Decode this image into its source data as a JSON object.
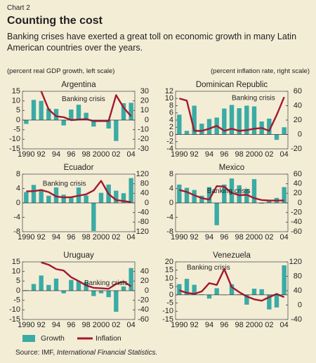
{
  "chart_label": "Chart 2",
  "title": "Counting the cost",
  "subtitle": "Banking crises have exerted a great toll on economic growth in many Latin American countries over the years.",
  "left_axis_label": "(percent real GDP growth, left scale)",
  "right_axis_label": "(percent inflation rate, right scale)",
  "source": "Source: IMF, ",
  "source_title": "International Financial Statistics.",
  "chart_data": [
    {
      "type": "bar",
      "title": "Argentina",
      "annotation": "Banking crisis",
      "categories": [
        "1990",
        null,
        "92",
        null,
        "94",
        null,
        "96",
        null,
        "98",
        null,
        "2000",
        null,
        "02",
        null,
        "04"
      ],
      "series": [
        {
          "name": "Growth",
          "color": "#3aaba5",
          "values": [
            -2,
            10.5,
            10,
            6,
            5.8,
            -2.8,
            5.5,
            8,
            3.8,
            -3.4,
            -0.8,
            -4.4,
            -10.9,
            8.8,
            9
          ]
        },
        {
          "name": "Inflation",
          "color": "#a3192f",
          "type": "line",
          "axis": "y2",
          "values": [
            null,
            null,
            30,
            11,
            4,
            3,
            0,
            0.5,
            1,
            -1,
            -1,
            -1,
            26,
            13,
            4
          ]
        }
      ],
      "ylim": [
        -15,
        15
      ],
      "yticks": [
        -15,
        -10,
        -5,
        0,
        5,
        10,
        15
      ],
      "y2lim": [
        -30,
        30
      ],
      "y2ticks": [
        -30,
        -20,
        -10,
        0,
        10,
        20,
        30
      ]
    },
    {
      "type": "bar",
      "title": "Dominican Republic",
      "annotation": "Banking crisis",
      "categories": [
        "1990",
        null,
        "92",
        null,
        "94",
        null,
        "96",
        null,
        "98",
        null,
        "2000",
        null,
        "02",
        null,
        "04"
      ],
      "series": [
        {
          "name": "Growth",
          "color": "#3aaba5",
          "values": [
            5.5,
            1,
            8,
            3,
            4.3,
            4.7,
            7.2,
            8.2,
            7.3,
            8,
            7.8,
            3.6,
            4.4,
            -1.5,
            2
          ]
        },
        {
          "name": "Inflation",
          "color": "#a3192f",
          "type": "line",
          "axis": "y2",
          "values": [
            50,
            47,
            5,
            5,
            8,
            12,
            5,
            8,
            5,
            6,
            8,
            9,
            5,
            27,
            52
          ]
        }
      ],
      "ylim": [
        -4,
        12
      ],
      "yticks": [
        -4,
        -2,
        0,
        2,
        4,
        6,
        8,
        10,
        12
      ],
      "y2lim": [
        -20,
        60
      ],
      "y2ticks": [
        -20,
        0,
        20,
        40,
        60
      ]
    },
    {
      "type": "bar",
      "title": "Ecuador",
      "annotation": "Banking crisis",
      "categories": [
        "1990",
        null,
        "92",
        null,
        "94",
        null,
        "96",
        null,
        "98",
        null,
        "2000",
        null,
        "02",
        null,
        "04"
      ],
      "series": [
        {
          "name": "Growth",
          "color": "#3aaba5",
          "values": [
            3,
            5,
            3.6,
            2,
            4.3,
            2.3,
            1.7,
            4.3,
            2.1,
            -7.8,
            2.8,
            5.1,
            3.4,
            2.7,
            6.9
          ]
        },
        {
          "name": "Inflation",
          "color": "#a3192f",
          "type": "line",
          "axis": "y2",
          "values": [
            48,
            49,
            54,
            45,
            27,
            23,
            24,
            30,
            36,
            52,
            92,
            37,
            12,
            8,
            3
          ]
        }
      ],
      "ylim": [
        -8,
        8
      ],
      "yticks": [
        -8,
        -4,
        0,
        4,
        8
      ],
      "y2lim": [
        -120,
        120
      ],
      "y2ticks": [
        -120,
        -80,
        -40,
        0,
        40,
        80,
        120
      ]
    },
    {
      "type": "bar",
      "title": "Mexico",
      "annotation": "Banking crisis",
      "categories": [
        "1990",
        null,
        "92",
        null,
        "94",
        null,
        "96",
        null,
        "98",
        null,
        "2000",
        null,
        "02",
        null,
        "04"
      ],
      "series": [
        {
          "name": "Growth",
          "color": "#3aaba5",
          "values": [
            5.1,
            4.2,
            3.6,
            2,
            4.4,
            -6.2,
            5.1,
            6.8,
            4.9,
            3.9,
            6.6,
            -0.2,
            0.8,
            1.4,
            4.4
          ]
        },
        {
          "name": "Inflation",
          "color": "#a3192f",
          "type": "line",
          "axis": "y2",
          "values": [
            27,
            23,
            16,
            10,
            7,
            35,
            34,
            21,
            16,
            17,
            10,
            6,
            5,
            5,
            5
          ]
        }
      ],
      "ylim": [
        -8,
        8
      ],
      "yticks": [
        -8,
        -4,
        0,
        4,
        8
      ],
      "y2lim": [
        -60,
        60
      ],
      "y2ticks": [
        -60,
        -40,
        -20,
        0,
        20,
        40,
        60
      ]
    },
    {
      "type": "bar",
      "title": "Uruguay",
      "annotation": "Banking crisis",
      "categories": [
        "1990",
        null,
        "92",
        null,
        "94",
        null,
        "96",
        null,
        "98",
        null,
        "2000",
        null,
        "02",
        null,
        "04"
      ],
      "series": [
        {
          "name": "Growth",
          "color": "#3aaba5",
          "values": [
            0.3,
            3.5,
            7.9,
            3,
            6.3,
            -1.4,
            5.6,
            5,
            4.5,
            -2.8,
            -1.4,
            -3.4,
            -11,
            2.2,
            11.8
          ]
        },
        {
          "name": "Inflation",
          "color": "#a3192f",
          "type": "line",
          "axis": "y2",
          "values": [
            null,
            null,
            59,
            54,
            45,
            42,
            28,
            20,
            11,
            6,
            5,
            4,
            14,
            19,
            9
          ]
        }
      ],
      "ylim": [
        -15,
        15
      ],
      "yticks": [
        -15,
        -10,
        -5,
        0,
        5,
        10,
        15
      ],
      "y2lim": [
        -60,
        60
      ],
      "y2ticks": [
        -60,
        -40,
        -20,
        0,
        20,
        40
      ]
    },
    {
      "type": "bar",
      "title": "Venezuela",
      "annotation": "Banking crisis",
      "categories": [
        "1990",
        null,
        "92",
        null,
        "94",
        null,
        "96",
        null,
        "98",
        null,
        "2000",
        null,
        "02",
        null,
        "04"
      ],
      "series": [
        {
          "name": "Growth",
          "color": "#3aaba5",
          "values": [
            6.5,
            9.7,
            6.1,
            0.3,
            -2.3,
            4,
            -0.2,
            6.4,
            0.3,
            -6,
            3.7,
            3.4,
            -8.9,
            -7.7,
            17.9
          ]
        },
        {
          "name": "Inflation",
          "color": "#a3192f",
          "type": "line",
          "axis": "y2",
          "values": [
            41,
            34,
            31,
            38,
            61,
            56,
            100,
            50,
            36,
            24,
            16,
            12,
            22,
            31,
            22
          ]
        }
      ],
      "ylim": [
        -15,
        20
      ],
      "yticks": [
        -15,
        -10,
        -5,
        0,
        5,
        10,
        15,
        20
      ],
      "y2lim": [
        -40,
        120
      ],
      "y2ticks": [
        -40,
        0,
        40,
        80,
        120
      ]
    }
  ]
}
